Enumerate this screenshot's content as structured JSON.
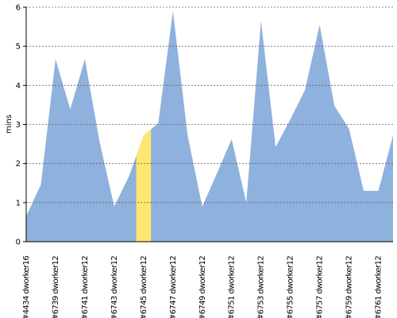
{
  "chart_data": {
    "type": "area",
    "y_label": "mins",
    "categories": [
      "#4434 dworker16",
      null,
      "#6739 dworker12",
      null,
      "#6741 dworker12",
      null,
      "#6743 dworker12",
      null,
      "#6745 dworker12",
      null,
      "#6747 dworker12",
      null,
      "#6749 dworker12",
      null,
      "#6751 dworker12",
      null,
      "#6753 dworker12",
      null,
      "#6755 dworker12",
      null,
      "#6757 dworker12",
      null,
      "#6759 dworker12",
      null,
      "#6761 dworker12",
      null
    ],
    "values": [
      0.65,
      1.46,
      4.67,
      3.39,
      4.67,
      2.56,
      0.9,
      1.67,
      2.72,
      3.03,
      5.9,
      2.72,
      0.9,
      1.75,
      2.62,
      1.0,
      5.65,
      2.42,
      3.13,
      3.88,
      5.55,
      3.48,
      2.89,
      1.3,
      1.3,
      2.72
    ],
    "color": "#8fb1dd",
    "highlight_index": 8,
    "highlight_color": "#ffe66e",
    "ylim": [
      0,
      6
    ],
    "yticks": [
      0,
      1,
      2,
      3,
      4,
      5,
      6
    ],
    "grid": true
  }
}
